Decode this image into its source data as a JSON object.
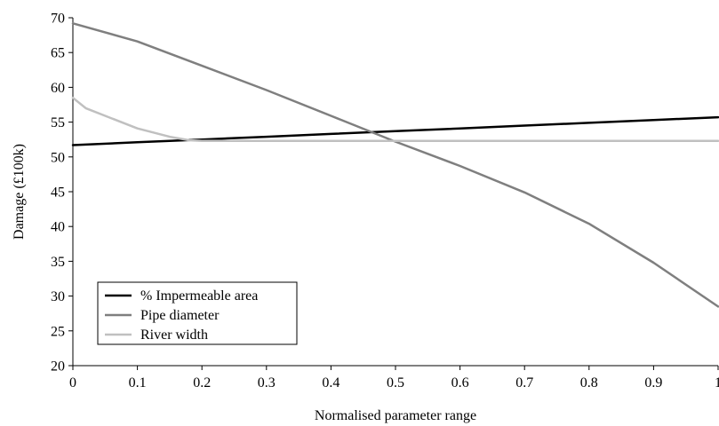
{
  "chart_data": {
    "type": "line",
    "title": "",
    "xlabel": "Normalised parameter range",
    "ylabel": "Damage (£100k)",
    "xlim": [
      0,
      1
    ],
    "ylim": [
      20,
      70
    ],
    "xticks": [
      0,
      0.1,
      0.2,
      0.3,
      0.4,
      0.5,
      0.6,
      0.7,
      0.8,
      0.9,
      1
    ],
    "xtick_labels": [
      "0",
      "0.1",
      "0.2",
      "0.3",
      "0.4",
      "0.5",
      "0.6",
      "0.7",
      "0.8",
      "0.9",
      "1"
    ],
    "yticks": [
      20,
      25,
      30,
      35,
      40,
      45,
      50,
      55,
      60,
      65,
      70
    ],
    "ytick_labels": [
      "20",
      "25",
      "30",
      "35",
      "40",
      "45",
      "50",
      "55",
      "60",
      "65",
      "70"
    ],
    "grid": false,
    "legend_position": "bottom-left",
    "series": [
      {
        "name": "% Impermeable area",
        "color": "#000000",
        "x": [
          0,
          0.1,
          0.2,
          0.3,
          0.4,
          0.5,
          0.6,
          0.7,
          0.8,
          0.9,
          1
        ],
        "y": [
          51.7,
          52.1,
          52.5,
          52.9,
          53.3,
          53.7,
          54.1,
          54.5,
          54.9,
          55.3,
          55.7
        ]
      },
      {
        "name": "Pipe diameter",
        "color": "#7f7f7f",
        "x": [
          0,
          0.1,
          0.2,
          0.3,
          0.4,
          0.5,
          0.6,
          0.7,
          0.8,
          0.9,
          1
        ],
        "y": [
          69.2,
          66.6,
          63.1,
          59.6,
          55.9,
          52.2,
          48.7,
          44.9,
          40.4,
          34.8,
          28.5
        ]
      },
      {
        "name": "River width",
        "color": "#c0c0c0",
        "x": [
          0,
          0.02,
          0.05,
          0.1,
          0.15,
          0.18,
          0.2,
          0.3,
          0.5,
          1
        ],
        "y": [
          58.5,
          57.0,
          55.9,
          54.1,
          52.9,
          52.4,
          52.3,
          52.3,
          52.3,
          52.3
        ]
      }
    ]
  }
}
